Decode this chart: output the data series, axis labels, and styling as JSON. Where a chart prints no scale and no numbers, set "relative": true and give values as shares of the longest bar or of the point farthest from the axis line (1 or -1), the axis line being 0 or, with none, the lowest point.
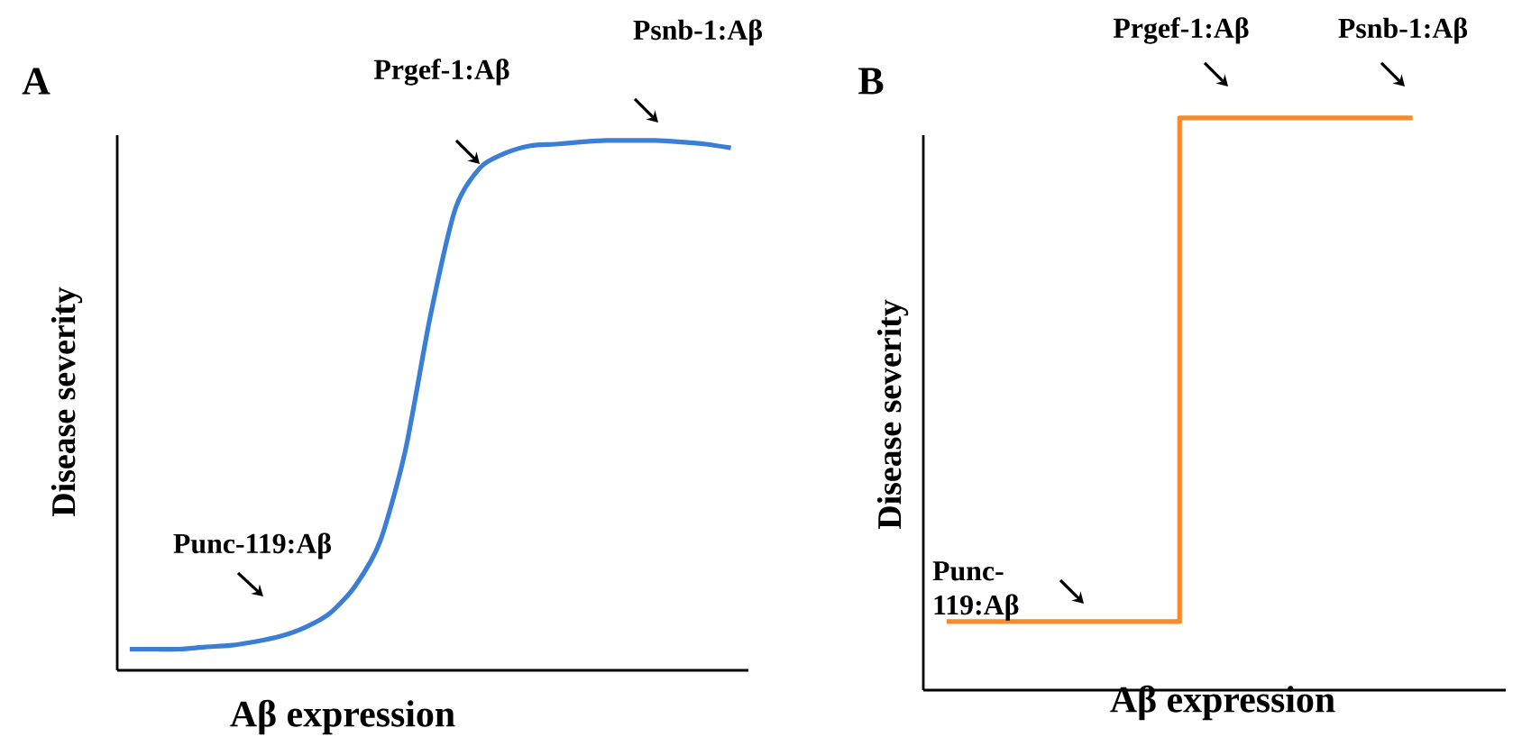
{
  "chart_data": [
    {
      "type": "line",
      "title": "A",
      "xlabel": "Aβ expression",
      "ylabel": "Disease severity",
      "relative": true,
      "categories": [
        null,
        null,
        null,
        null,
        null,
        null,
        null,
        null,
        null,
        null,
        null,
        null,
        null,
        null,
        null,
        null,
        null,
        null,
        null,
        null,
        null,
        null,
        null,
        null,
        null
      ],
      "series": [
        {
          "color": "#3a7fd5",
          "values": [
            0.04,
            0.04,
            0.04,
            0.044,
            0.047,
            0.054,
            0.064,
            0.081,
            0.108,
            0.159,
            0.244,
            0.414,
            0.668,
            0.871,
            0.949,
            0.976,
            0.99,
            0.993,
            0.997,
            1,
            1,
            1,
            0.997,
            0.993,
            0.986
          ]
        }
      ],
      "annotations": [
        "Punc-119:Aβ",
        "Prgef-1:Aβ",
        "Psnb-1:Aβ"
      ]
    },
    {
      "type": "step",
      "title": "B",
      "xlabel": "Aβ expression",
      "ylabel": "Disease severity",
      "relative": true,
      "categories": [
        null,
        null,
        null
      ],
      "series": [
        {
          "color": "#f58b2c",
          "values": [
            0.12,
            1,
            1
          ]
        }
      ],
      "annotations": [
        "Punc-119:Aβ",
        "Prgef-1:Aβ",
        "Psnb-1:Aβ"
      ]
    }
  ]
}
